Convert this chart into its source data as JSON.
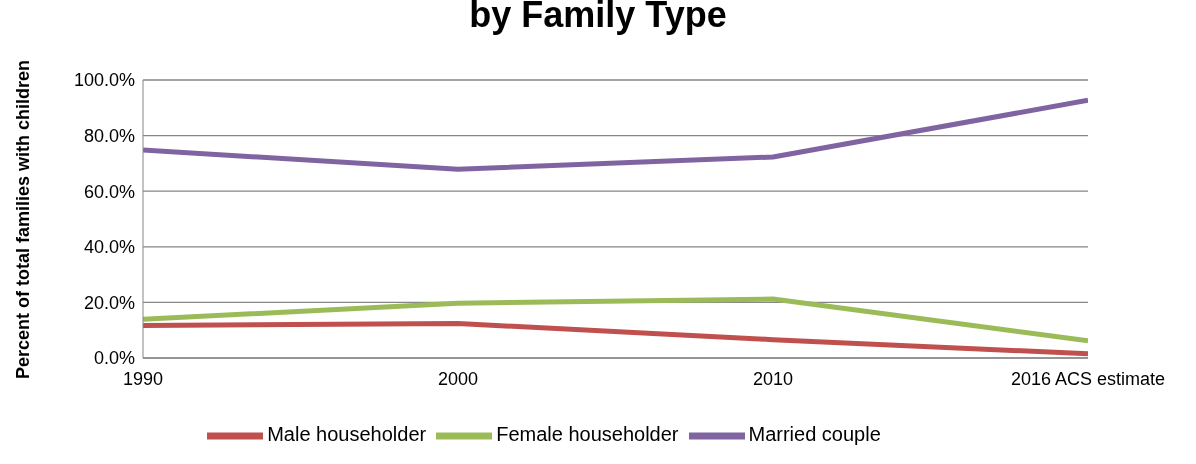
{
  "chart_data": {
    "type": "line",
    "title": "by Family Type",
    "ylabel": "Percent of total families with children",
    "categories": [
      "1990",
      "2000",
      "2010",
      "2016 ACS estimate"
    ],
    "series": [
      {
        "name": "Male householder",
        "color": "#c0504d",
        "values": [
          11.7,
          12.4,
          6.6,
          1.5
        ]
      },
      {
        "name": "Female householder",
        "color": "#9bbb59",
        "values": [
          13.9,
          19.7,
          21.2,
          6.2
        ]
      },
      {
        "name": "Married couple",
        "color": "#8064a2",
        "values": [
          74.8,
          67.9,
          72.3,
          92.7
        ]
      }
    ],
    "ylim": [
      0,
      100
    ],
    "yticks": [
      {
        "value": 0,
        "label": "0.0%"
      },
      {
        "value": 20,
        "label": "20.0%"
      },
      {
        "value": 40,
        "label": "40.0%"
      },
      {
        "value": 60,
        "label": "60.0%"
      },
      {
        "value": 80,
        "label": "80.0%"
      },
      {
        "value": 100,
        "label": "100.0%"
      }
    ],
    "grid": "y",
    "legend": "bottom",
    "marker": "none",
    "line_style": "solid"
  }
}
